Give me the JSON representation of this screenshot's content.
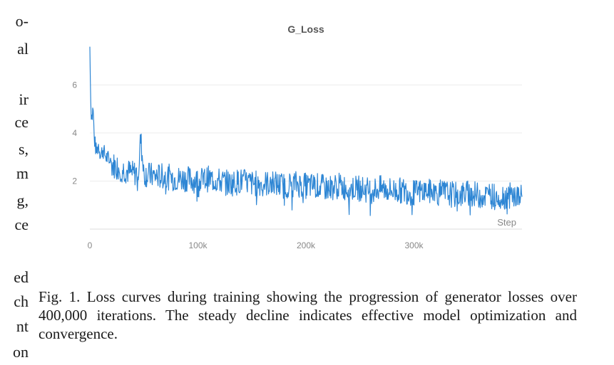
{
  "left_column_fragments": [
    "o-",
    "al",
    "ir",
    "ce",
    "s,",
    "m",
    "g,",
    "ce",
    "ed",
    "ch",
    "nt",
    "on"
  ],
  "caption": "Fig. 1.  Loss curves during training showing the progression of generator losses over 400,000 iterations. The steady decline indicates effective model optimization and convergence.",
  "chart_data": {
    "type": "line",
    "title": "G_Loss",
    "xlabel": "Step",
    "ylabel": "",
    "x_ticks": [
      0,
      100000,
      200000,
      300000
    ],
    "x_tick_labels": [
      "0",
      "100k",
      "200k",
      "300k"
    ],
    "y_ticks": [
      2,
      4,
      6
    ],
    "y_tick_labels": [
      "2",
      "4",
      "6"
    ],
    "xlim": [
      0,
      400000
    ],
    "ylim": [
      0,
      7.7
    ],
    "grid": true,
    "line_color": "#2e86d4",
    "series": [
      {
        "x": [
          0,
          1000,
          2000,
          3000,
          4000,
          6000,
          8000,
          10000,
          12000,
          15000,
          18000,
          20000,
          25000,
          30000,
          35000,
          40000,
          45000,
          47000,
          50000,
          60000,
          70000,
          80000,
          90000,
          100000,
          110000,
          120000,
          130000,
          140000,
          150000,
          160000,
          170000,
          180000,
          190000,
          200000,
          210000,
          220000,
          230000,
          240000,
          250000,
          260000,
          270000,
          280000,
          290000,
          300000,
          310000,
          320000,
          330000,
          340000,
          350000,
          360000,
          370000,
          380000,
          390000,
          400000
        ],
        "values": [
          7.6,
          5.0,
          4.6,
          5.1,
          3.8,
          3.2,
          3.5,
          3.1,
          3.3,
          3.0,
          2.9,
          2.7,
          2.6,
          2.5,
          2.4,
          2.3,
          2.4,
          3.8,
          2.3,
          2.2,
          2.2,
          2.1,
          2.1,
          2.0,
          2.1,
          2.0,
          1.9,
          2.0,
          1.9,
          1.9,
          1.9,
          1.8,
          1.9,
          1.8,
          1.8,
          1.7,
          1.8,
          1.7,
          1.7,
          1.6,
          1.7,
          1.6,
          1.6,
          1.5,
          1.6,
          1.5,
          1.5,
          1.4,
          1.5,
          1.4,
          1.4,
          1.35,
          1.4,
          1.3
        ]
      }
    ]
  }
}
